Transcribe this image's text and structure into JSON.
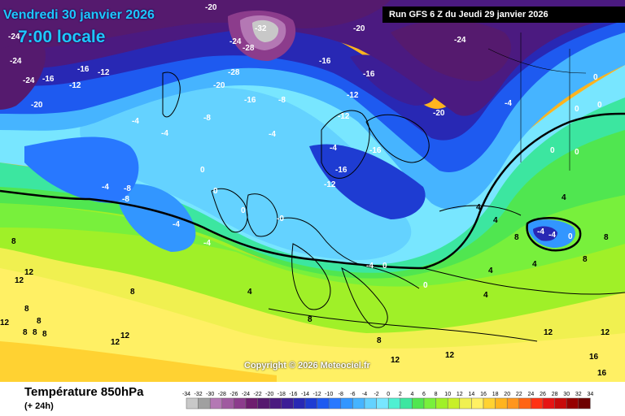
{
  "title": {
    "date": "Vendredi 30 janvier 2026",
    "time": "7:00 locale"
  },
  "run": "Run GFS 6 Z du Jeudi 29 janvier 2026",
  "copyright": "Copyright © 2026 Meteociel.fr",
  "legend": {
    "title": "Température 850hPa",
    "subtitle": "(+ 24h)",
    "ticks": [
      "-34",
      "-32",
      "-30",
      "-28",
      "-26",
      "-24",
      "-22",
      "-20",
      "-18",
      "-16",
      "-14",
      "-12",
      "-10",
      "-8",
      "-6",
      "-4",
      "-2",
      "0",
      "2",
      "4",
      "6",
      "8",
      "10",
      "12",
      "14",
      "16",
      "18",
      "20",
      "22",
      "24",
      "26",
      "28",
      "30",
      "32",
      "34"
    ],
    "colors": [
      "#c8c8c8",
      "#a0a0a0",
      "#b478b4",
      "#a05aa0",
      "#8c3c8c",
      "#6e1e6e",
      "#551a6e",
      "#4b1a80",
      "#3c1e96",
      "#2828b4",
      "#1e3cd2",
      "#1e5af0",
      "#2878ff",
      "#3296ff",
      "#46b4ff",
      "#64d2ff",
      "#78e6ff",
      "#50f0d2",
      "#3ce6a0",
      "#50e650",
      "#78f03c",
      "#a0f028",
      "#c8f028",
      "#f0f050",
      "#fff064",
      "#ffd232",
      "#ffb41e",
      "#ff961e",
      "#ff6414",
      "#ff3214",
      "#e61414",
      "#c80a0a",
      "#960000",
      "#6e0000",
      "#3c0000"
    ]
  },
  "icons": {
    "isotherm_zero": "thick-black-contour",
    "coastlines": "thin-black-lines"
  },
  "map_labels": [
    "-24",
    "-20",
    "-24",
    "-28",
    "-32",
    "-28",
    "-16",
    "-24",
    "-12",
    "-16",
    "-12",
    "-8",
    "-4",
    "0",
    "-4",
    "-8",
    "-16",
    "4",
    "8",
    "12",
    "16"
  ]
}
